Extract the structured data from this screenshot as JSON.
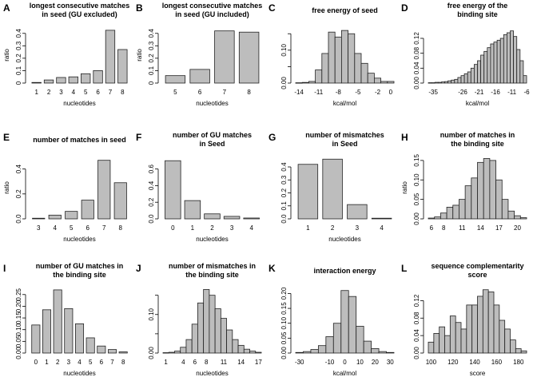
{
  "figure": {
    "background": "#ffffff",
    "bar_fill": "#bdbdbd",
    "bar_stroke": "#222222"
  },
  "chart_data": [
    {
      "id": "A",
      "type": "bar",
      "title": [
        "longest consecutive matches",
        "in seed (GU excluded)"
      ],
      "xlabel": "nucleotides",
      "ylabel": "ratio",
      "categories": [
        "1",
        "2",
        "3",
        "4",
        "5",
        "6",
        "7",
        "8"
      ],
      "values": [
        0.005,
        0.025,
        0.045,
        0.05,
        0.075,
        0.1,
        0.425,
        0.27
      ],
      "ylim": [
        0,
        0.45
      ],
      "yticks": [
        0,
        0.1,
        0.2,
        0.3,
        0.4
      ],
      "xticks": [
        "1",
        "2",
        "3",
        "4",
        "5",
        "6",
        "7",
        "8"
      ]
    },
    {
      "id": "B",
      "type": "bar",
      "title": [
        "longest consecutive matches",
        "in seed (GU included)"
      ],
      "xlabel": "nucleotides",
      "ylabel": "ratio",
      "categories": [
        "5",
        "6",
        "7",
        "8"
      ],
      "values": [
        0.06,
        0.11,
        0.42,
        0.41
      ],
      "ylim": [
        0,
        0.45
      ],
      "yticks": [
        0,
        0.1,
        0.2,
        0.3,
        0.4
      ],
      "xticks": [
        "5",
        "6",
        "7",
        "8"
      ]
    },
    {
      "id": "C",
      "type": "histogram",
      "title": [
        "free energy of seed"
      ],
      "xlabel": "kcal/mol",
      "ylabel": "",
      "categories": [
        "-14",
        "-13",
        "-12",
        "-11",
        "-10",
        "-9",
        "-8",
        "-7",
        "-6",
        "-5",
        "-4",
        "-3",
        "-2",
        "-1",
        "0"
      ],
      "values": [
        0.001,
        0.002,
        0.005,
        0.04,
        0.09,
        0.155,
        0.14,
        0.16,
        0.15,
        0.09,
        0.06,
        0.03,
        0.015,
        0.005,
        0.005
      ],
      "ylim": [
        0,
        0.17
      ],
      "yticks": [
        0,
        0.05,
        0.1,
        0.15
      ],
      "ytick_labels": [
        "0.00",
        "",
        "0.10",
        ""
      ],
      "xticks": [
        "-14",
        "-11",
        "-8",
        "-5",
        "-2",
        "0"
      ]
    },
    {
      "id": "D",
      "type": "histogram",
      "title": [
        "free energy of the",
        "binding site"
      ],
      "xlabel": "kcal/mol",
      "ylabel": "",
      "categories": [
        "-36",
        "-35",
        "-34",
        "-33",
        "-32",
        "-31",
        "-30",
        "-29",
        "-28",
        "-27",
        "-26",
        "-25",
        "-24",
        "-23",
        "-22",
        "-21",
        "-20",
        "-19",
        "-18",
        "-17",
        "-16",
        "-15",
        "-14",
        "-13",
        "-12",
        "-11",
        "-10",
        "-9",
        "-8",
        "-7"
      ],
      "values": [
        0.001,
        0.001,
        0.002,
        0.002,
        0.003,
        0.004,
        0.006,
        0.008,
        0.01,
        0.015,
        0.02,
        0.025,
        0.03,
        0.04,
        0.05,
        0.06,
        0.075,
        0.085,
        0.095,
        0.105,
        0.11,
        0.115,
        0.12,
        0.13,
        0.135,
        0.14,
        0.125,
        0.09,
        0.06,
        0.02
      ],
      "ylim": [
        0,
        0.15
      ],
      "yticks": [
        0,
        0.04,
        0.08,
        0.12
      ],
      "ytick_labels": [
        "0.00",
        "0.04",
        "0.08",
        "0.12"
      ],
      "xticks": [
        "-35",
        "-26",
        "-21",
        "-16",
        "-11",
        "-6"
      ]
    },
    {
      "id": "E",
      "type": "bar",
      "title": [
        "number of matches in seed"
      ],
      "xlabel": "nucleotides",
      "ylabel": "ratio",
      "categories": [
        "3",
        "4",
        "5",
        "6",
        "7",
        "8"
      ],
      "values": [
        0.005,
        0.03,
        0.06,
        0.15,
        0.47,
        0.29
      ],
      "ylim": [
        0,
        0.5
      ],
      "yticks": [
        0,
        0.2,
        0.4
      ],
      "ytick_labels": [
        "0.0",
        "0.2",
        "0.4"
      ],
      "xticks": [
        "3",
        "4",
        "5",
        "6",
        "7",
        "8"
      ]
    },
    {
      "id": "F",
      "type": "bar",
      "title": [
        "number of GU matches",
        "in Seed"
      ],
      "xlabel": "nucleotides",
      "ylabel": "",
      "categories": [
        "0",
        "1",
        "2",
        "3",
        "4"
      ],
      "values": [
        0.7,
        0.22,
        0.06,
        0.03,
        0.01
      ],
      "ylim": [
        0,
        0.75
      ],
      "yticks": [
        0,
        0.2,
        0.4,
        0.6
      ],
      "ytick_labels": [
        "0.0",
        "0.2",
        "0.4",
        "0.6"
      ],
      "xticks": [
        "0",
        "1",
        "2",
        "3",
        "4"
      ]
    },
    {
      "id": "G",
      "type": "bar",
      "title": [
        "number of mismatches",
        "in Seed"
      ],
      "xlabel": "nucleotides",
      "ylabel": "",
      "categories": [
        "1",
        "2",
        "3",
        "4"
      ],
      "values": [
        0.42,
        0.46,
        0.11,
        0.005
      ],
      "ylim": [
        0,
        0.48
      ],
      "yticks": [
        0,
        0.1,
        0.2,
        0.3,
        0.4
      ],
      "ytick_labels": [
        "0.0",
        "0.1",
        "0.2",
        "0.3",
        "0.4"
      ],
      "xticks": [
        "1",
        "2",
        "3",
        "4"
      ]
    },
    {
      "id": "H",
      "type": "histogram",
      "title": [
        "number of matches in",
        "the binding site"
      ],
      "xlabel": "",
      "ylabel": "ratio",
      "categories": [
        "6",
        "7",
        "8",
        "9",
        "10",
        "11",
        "12",
        "13",
        "14",
        "15",
        "16",
        "17",
        "18",
        "19",
        "20",
        "21"
      ],
      "values": [
        0.002,
        0.005,
        0.015,
        0.03,
        0.035,
        0.05,
        0.085,
        0.105,
        0.145,
        0.155,
        0.15,
        0.1,
        0.05,
        0.02,
        0.008,
        0.003
      ],
      "ylim": [
        0,
        0.16
      ],
      "yticks": [
        0,
        0.05,
        0.1,
        0.15
      ],
      "ytick_labels": [
        "0.00",
        "0.05",
        "0.10",
        "0.15"
      ],
      "xticks": [
        "6",
        "8",
        "11",
        "14",
        "17",
        "20"
      ]
    },
    {
      "id": "I",
      "type": "bar",
      "title": [
        "number of GU matches in",
        "the binding site"
      ],
      "xlabel": "nucleotides",
      "ylabel": "",
      "categories": [
        "0",
        "1",
        "2",
        "3",
        "4",
        "5",
        "6",
        "7",
        "8"
      ],
      "values": [
        0.12,
        0.185,
        0.27,
        0.19,
        0.125,
        0.065,
        0.03,
        0.015,
        0.005
      ],
      "ylim": [
        0,
        0.28
      ],
      "yticks": [
        0,
        0.05,
        0.1,
        0.15,
        0.2,
        0.25
      ],
      "ytick_labels": [
        "0.00",
        "0.05",
        "0.10",
        "0.15",
        "0.20",
        "0.25"
      ],
      "xticks": [
        "0",
        "1",
        "2",
        "3",
        "4",
        "5",
        "6",
        "7",
        "8"
      ]
    },
    {
      "id": "J",
      "type": "histogram",
      "title": [
        "number of mismatches in",
        "the binding site"
      ],
      "xlabel": "nucleotides",
      "ylabel": "",
      "categories": [
        "1",
        "2",
        "3",
        "4",
        "5",
        "6",
        "7",
        "8",
        "9",
        "10",
        "11",
        "12",
        "13",
        "14",
        "15",
        "16",
        "17"
      ],
      "values": [
        0.001,
        0.002,
        0.005,
        0.015,
        0.035,
        0.075,
        0.13,
        0.165,
        0.15,
        0.115,
        0.09,
        0.06,
        0.035,
        0.02,
        0.01,
        0.005,
        0.002
      ],
      "ylim": [
        0,
        0.17
      ],
      "yticks": [
        0,
        0.05,
        0.1,
        0.15
      ],
      "ytick_labels": [
        "0.00",
        "",
        "0.10",
        ""
      ],
      "xticks": [
        "1",
        "4",
        "6",
        "8",
        "11",
        "14",
        "17"
      ]
    },
    {
      "id": "K",
      "type": "histogram",
      "title": [
        "interaction energy"
      ],
      "xlabel": "kcal/mol",
      "ylabel": "",
      "categories": [
        "-30",
        "-25",
        "-20",
        "-15",
        "-10",
        "-5",
        "0",
        "5",
        "10",
        "15",
        "20",
        "25",
        "30"
      ],
      "values": [
        0.002,
        0.005,
        0.012,
        0.025,
        0.055,
        0.1,
        0.21,
        0.19,
        0.09,
        0.04,
        0.015,
        0.005,
        0.002
      ],
      "ylim": [
        0,
        0.22
      ],
      "yticks": [
        0,
        0.05,
        0.1,
        0.15,
        0.2
      ],
      "ytick_labels": [
        "0.00",
        "0.05",
        "0.10",
        "0.15",
        "0.20"
      ],
      "xticks": [
        "-30",
        "-10",
        "0",
        "10",
        "20",
        "30"
      ]
    },
    {
      "id": "L",
      "type": "histogram",
      "title": [
        "sequence complementarity",
        "score"
      ],
      "xlabel": "score",
      "ylabel": "",
      "categories": [
        "100",
        "105",
        "110",
        "115",
        "120",
        "125",
        "130",
        "135",
        "140",
        "145",
        "150",
        "155",
        "160",
        "165",
        "170",
        "175",
        "180",
        "185"
      ],
      "values": [
        0.025,
        0.045,
        0.06,
        0.04,
        0.085,
        0.07,
        0.055,
        0.11,
        0.11,
        0.13,
        0.145,
        0.14,
        0.11,
        0.075,
        0.055,
        0.03,
        0.01,
        0.005
      ],
      "ylim": [
        0,
        0.15
      ],
      "yticks": [
        0,
        0.04,
        0.08,
        0.12
      ],
      "ytick_labels": [
        "0.00",
        "0.04",
        "0.08",
        "0.12"
      ],
      "xticks": [
        "100",
        "120",
        "140",
        "160",
        "180"
      ]
    }
  ]
}
